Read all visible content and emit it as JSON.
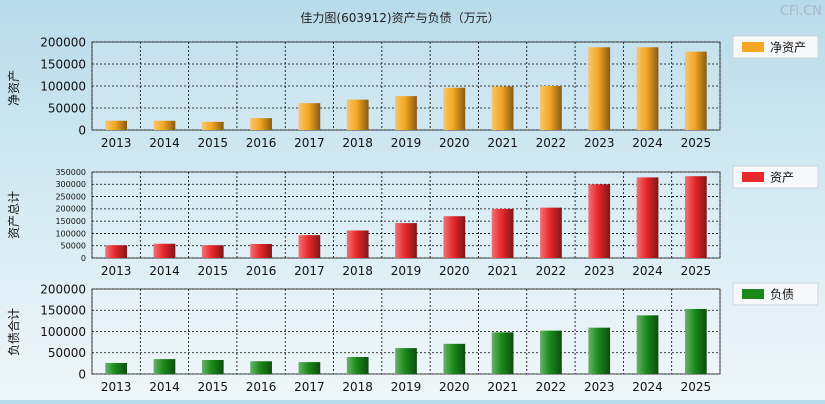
{
  "title": "佳力图(603912)资产与负债（万元）",
  "watermark": "CFi.CN",
  "chart_data": [
    {
      "type": "bar",
      "ylabel": "净资产",
      "legend": "净资产",
      "color": "#f5a623",
      "ylim": [
        0,
        200000
      ],
      "yticks": [
        0,
        50000,
        100000,
        150000,
        200000
      ],
      "categories": [
        "2013",
        "2014",
        "2015",
        "2016",
        "2017",
        "2018",
        "2019",
        "2020",
        "2021",
        "2022",
        "2023",
        "2024",
        "2025"
      ],
      "values": [
        21000,
        21000,
        18500,
        27000,
        61000,
        69000,
        77000,
        96000,
        99000,
        100000,
        188000,
        188000,
        178000
      ],
      "legend_position": "right",
      "grid": true
    },
    {
      "type": "bar",
      "ylabel": "资产总计",
      "legend": "资产",
      "color": "#e8282b",
      "ylim": [
        0,
        350000
      ],
      "yticks": [
        0,
        50000,
        100000,
        150000,
        200000,
        250000,
        300000,
        350000
      ],
      "categories": [
        "2013",
        "2014",
        "2015",
        "2016",
        "2017",
        "2018",
        "2019",
        "2020",
        "2021",
        "2022",
        "2023",
        "2024",
        "2025"
      ],
      "values": [
        52000,
        58000,
        52000,
        57000,
        93000,
        112000,
        142000,
        170000,
        200000,
        205000,
        300000,
        328000,
        333000
      ],
      "legend_position": "right",
      "grid": true
    },
    {
      "type": "bar",
      "ylabel": "负债合计",
      "legend": "负债",
      "color": "#1a8a1a",
      "ylim": [
        0,
        200000
      ],
      "yticks": [
        0,
        50000,
        100000,
        150000,
        200000
      ],
      "categories": [
        "2013",
        "2014",
        "2015",
        "2016",
        "2017",
        "2018",
        "2019",
        "2020",
        "2021",
        "2022",
        "2023",
        "2024",
        "2025"
      ],
      "values": [
        26000,
        35000,
        33000,
        30000,
        28000,
        40000,
        61000,
        71000,
        98000,
        102000,
        109000,
        138000,
        153000
      ],
      "legend_position": "right",
      "grid": true
    }
  ]
}
